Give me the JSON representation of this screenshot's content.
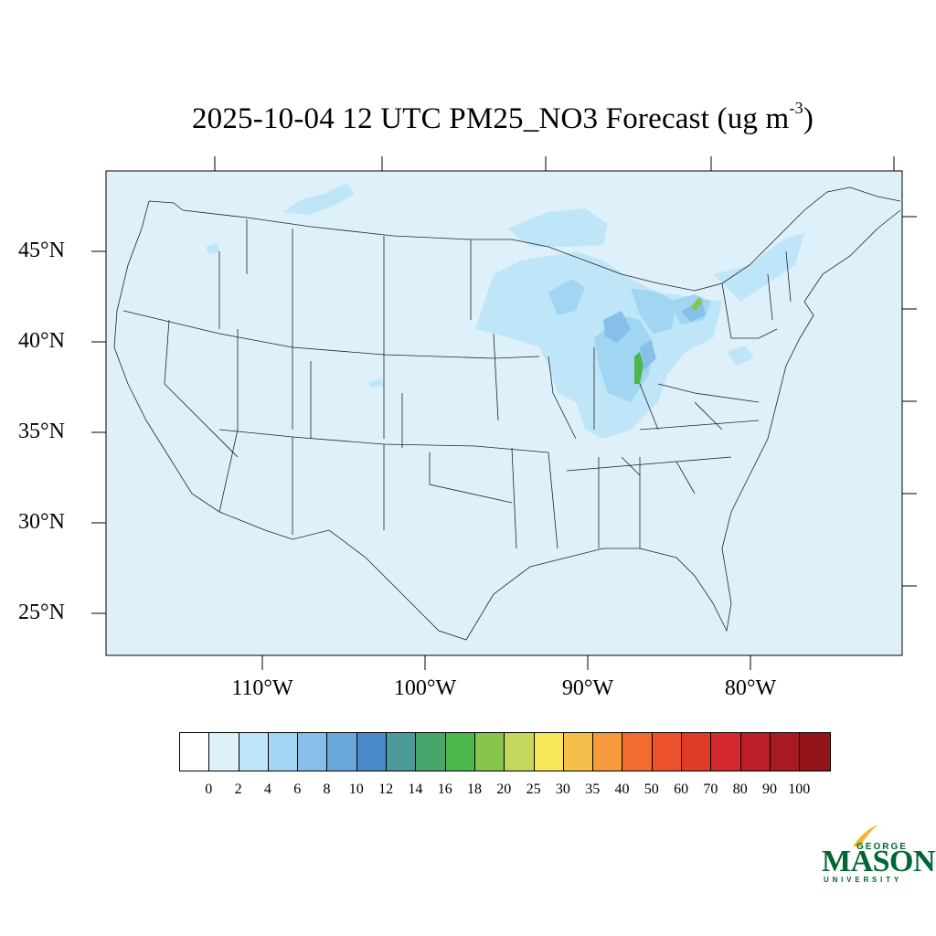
{
  "title": {
    "text": "2025-10-04 12 UTC PM25_NO3 Forecast (ug m",
    "superscript": "-3",
    "suffix": ")"
  },
  "map": {
    "region": "Contiguous United States",
    "background_color": "#def1fb",
    "lat_labels": [
      "45°N",
      "40°N",
      "35°N",
      "30°N",
      "25°N"
    ],
    "lon_labels": [
      "110°W",
      "100°W",
      "90°W",
      "80°W"
    ]
  },
  "colorbar": {
    "colors": [
      "#ffffff",
      "#def1fb",
      "#bfe6f8",
      "#a0d6f2",
      "#86bfe7",
      "#6aa8dc",
      "#4a8ac8",
      "#4a9b9a",
      "#48a56c",
      "#4cb74c",
      "#86c54e",
      "#c3d85c",
      "#f7e65a",
      "#f6bf49",
      "#f59a3d",
      "#f26b30",
      "#ec532c",
      "#e03a28",
      "#d42a2d",
      "#bd1d26",
      "#aa1a22",
      "#941519"
    ],
    "ticks": [
      "0",
      "2",
      "4",
      "6",
      "8",
      "10",
      "12",
      "14",
      "16",
      "18",
      "20",
      "25",
      "30",
      "35",
      "40",
      "50",
      "60",
      "70",
      "80",
      "90",
      "100"
    ]
  },
  "logo": {
    "line1": "GEORGE",
    "line2": "MASON",
    "line3": "UNIVERSITY",
    "color": "#006633",
    "accent": "#f2b830"
  }
}
